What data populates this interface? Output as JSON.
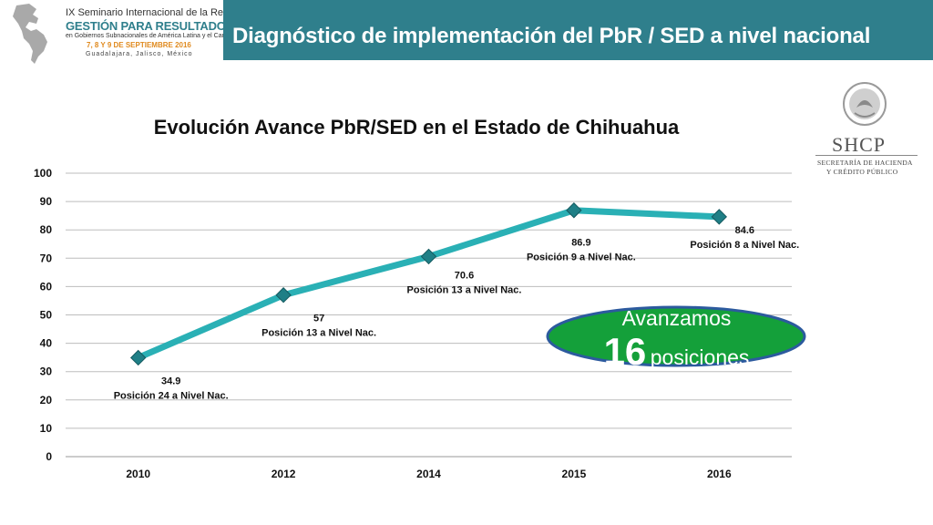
{
  "logo": {
    "line1": "IX Seminario Internacional de la Red de",
    "line2": "GESTIÓN PARA RESULTADOS",
    "line3": "en Gobiernos Subnacionales de América Latina y el Caribe",
    "line4": "7, 8 Y 9 DE SEPTIEMBRE 2016",
    "line5": "Guadalajara, Jalisco, México"
  },
  "header": {
    "title": "Diagnóstico de implementación del PbR / SED a nivel nacional"
  },
  "shcp": {
    "name": "SHCP",
    "subtitle1": "SECRETARÍA DE HACIENDA",
    "subtitle2": "Y CRÉDITO PÚBLICO"
  },
  "badge": {
    "line1": "Avanzamos",
    "number": "16",
    "word": "posiciones"
  },
  "colors": {
    "header_bg": "#2f7f8c",
    "line": "#2ab0b5",
    "marker": "#1f7f86",
    "badge_fill": "#14a03a",
    "badge_stroke": "#2c5a9e"
  },
  "chart_data": {
    "type": "line",
    "title": "Evolución Avance PbR/SED en el Estado de Chihuahua",
    "categories": [
      "2010",
      "2012",
      "2014",
      "2015",
      "2016"
    ],
    "series": [
      {
        "name": "Avance PbR/SED",
        "values": [
          34.9,
          57,
          70.6,
          86.9,
          84.6
        ]
      }
    ],
    "value_labels": [
      "34.9",
      "57",
      "70.6",
      "86.9",
      "84.6"
    ],
    "rank_labels": [
      "Posición 24 a Nivel Nac.",
      "Posición 13 a Nivel Nac.",
      "Posición 13 a Nivel Nac.",
      "Posición 9 a Nivel Nac.",
      "Posición 8 a Nivel Nac."
    ],
    "ylim": [
      0,
      100
    ],
    "yticks": [
      "0",
      "10",
      "20",
      "30",
      "40",
      "50",
      "60",
      "70",
      "80",
      "90",
      "100"
    ],
    "grid": true,
    "xlabel": "",
    "ylabel": ""
  }
}
